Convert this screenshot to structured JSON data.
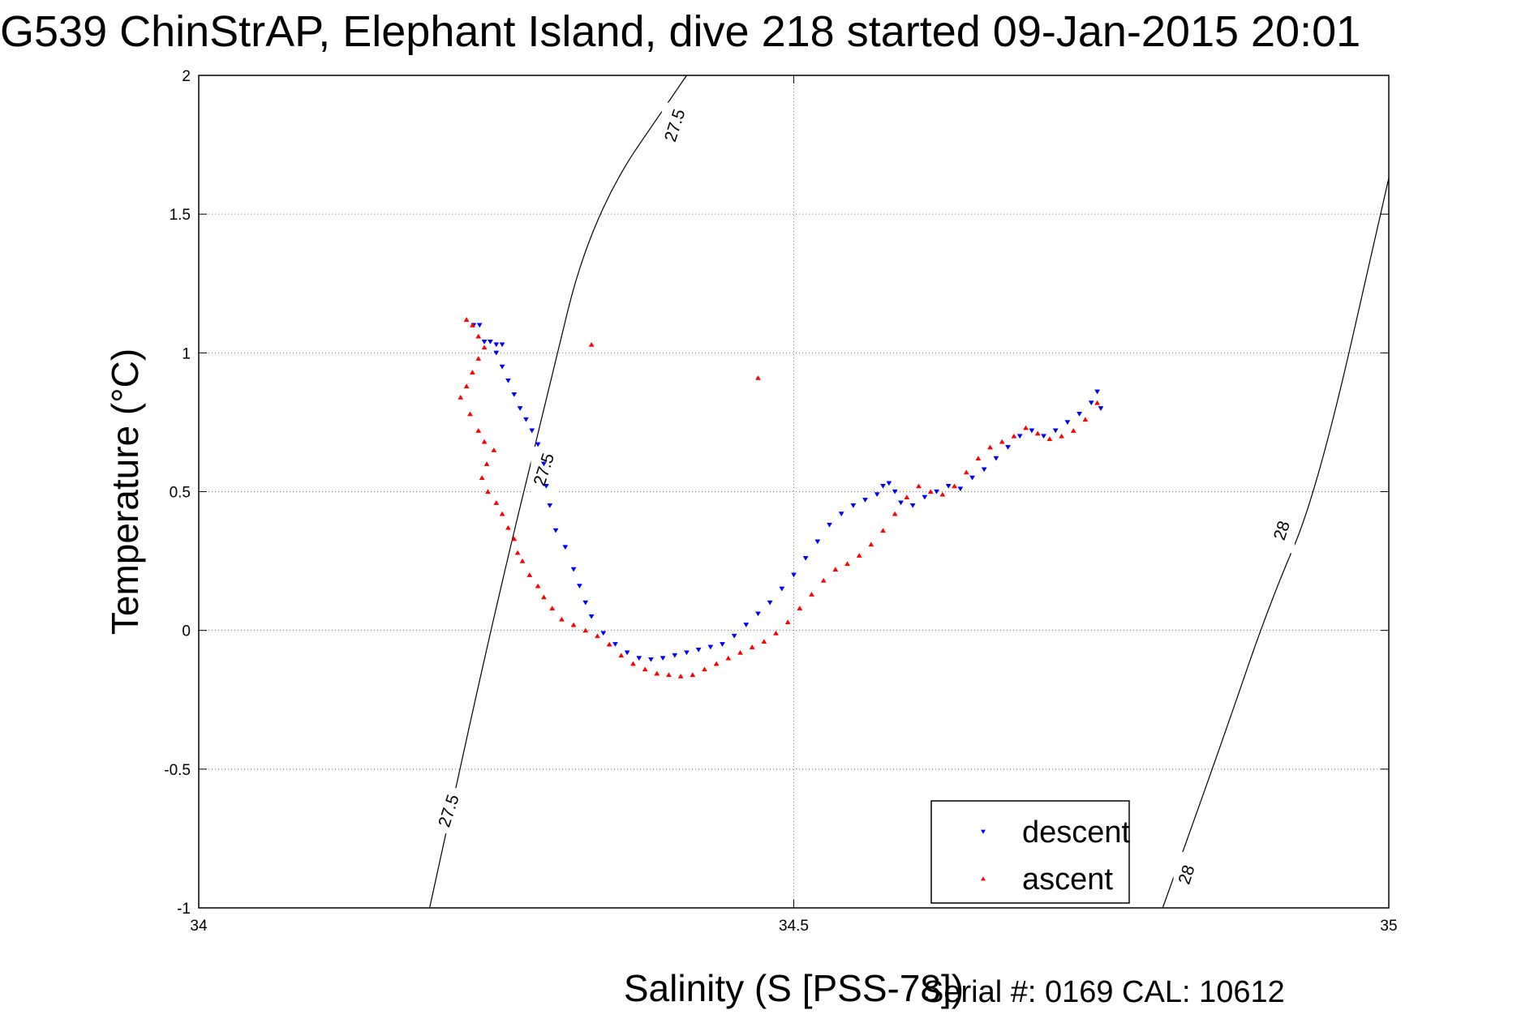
{
  "title": "G539 ChinStrAP, Elephant Island, dive 218 started 09-Jan-2015 20:01",
  "serial_text": "Serial #: 0169 CAL: 10612",
  "chart_data": {
    "type": "scatter",
    "title": "G539 ChinStrAP, Elephant Island, dive 218 started 09-Jan-2015 20:01",
    "xlabel": "Salinity (S [PSS-78])",
    "ylabel": "Temperature (°C)",
    "xlim": [
      34,
      35
    ],
    "ylim": [
      -1,
      2
    ],
    "xticks": [
      34,
      34.5,
      35
    ],
    "xtick_labels": [
      "34",
      "34.5",
      "35"
    ],
    "yticks": [
      -1,
      -0.5,
      0,
      0.5,
      1,
      1.5,
      2
    ],
    "ytick_labels": [
      "-1",
      "-0.5",
      "0",
      "0.5",
      "1",
      "1.5",
      "2"
    ],
    "grid": true,
    "legend_position": "bottom-right",
    "contours": [
      {
        "label": "27.5",
        "points": [
          [
            34.194,
            -1.0
          ],
          [
            34.245,
            0.0
          ],
          [
            34.29,
            0.8
          ],
          [
            34.33,
            1.5
          ],
          [
            34.41,
            2.0
          ]
        ],
        "label_at": [
          [
            34.21,
            -0.65
          ],
          [
            34.29,
            0.58
          ],
          [
            34.4,
            1.82
          ]
        ]
      },
      {
        "label": "28",
        "points": [
          [
            34.81,
            -1.0
          ],
          [
            34.86,
            -0.4
          ],
          [
            34.9,
            0.1
          ],
          [
            34.94,
            0.5
          ],
          [
            35.0,
            1.63
          ]
        ],
        "label_at": [
          [
            34.83,
            -0.88
          ],
          [
            34.91,
            0.36
          ]
        ]
      }
    ],
    "series": [
      {
        "name": "descent",
        "color": "#0000ff",
        "marker": "triangle-down",
        "points": [
          [
            34.231,
            1.1
          ],
          [
            34.236,
            1.1
          ],
          [
            34.24,
            1.04
          ],
          [
            34.245,
            1.04
          ],
          [
            34.25,
            1.03
          ],
          [
            34.255,
            1.03
          ],
          [
            34.25,
            1.0
          ],
          [
            34.255,
            0.95
          ],
          [
            34.26,
            0.9
          ],
          [
            34.265,
            0.85
          ],
          [
            34.27,
            0.8
          ],
          [
            34.275,
            0.76
          ],
          [
            34.28,
            0.72
          ],
          [
            34.285,
            0.67
          ],
          [
            34.29,
            0.6
          ],
          [
            34.292,
            0.52
          ],
          [
            34.295,
            0.45
          ],
          [
            34.3,
            0.36
          ],
          [
            34.308,
            0.3
          ],
          [
            34.315,
            0.22
          ],
          [
            34.32,
            0.16
          ],
          [
            34.325,
            0.1
          ],
          [
            34.33,
            0.05
          ],
          [
            34.34,
            -0.01
          ],
          [
            34.35,
            -0.05
          ],
          [
            34.36,
            -0.08
          ],
          [
            34.37,
            -0.1
          ],
          [
            34.38,
            -0.105
          ],
          [
            34.39,
            -0.1
          ],
          [
            34.4,
            -0.09
          ],
          [
            34.41,
            -0.08
          ],
          [
            34.42,
            -0.07
          ],
          [
            34.43,
            -0.06
          ],
          [
            34.44,
            -0.05
          ],
          [
            34.45,
            -0.02
          ],
          [
            34.46,
            0.02
          ],
          [
            34.47,
            0.06
          ],
          [
            34.48,
            0.1
          ],
          [
            34.49,
            0.15
          ],
          [
            34.5,
            0.2
          ],
          [
            34.51,
            0.26
          ],
          [
            34.52,
            0.32
          ],
          [
            34.53,
            0.38
          ],
          [
            34.54,
            0.42
          ],
          [
            34.55,
            0.45
          ],
          [
            34.56,
            0.47
          ],
          [
            34.57,
            0.49
          ],
          [
            34.575,
            0.52
          ],
          [
            34.58,
            0.53
          ],
          [
            34.585,
            0.5
          ],
          [
            34.59,
            0.46
          ],
          [
            34.6,
            0.45
          ],
          [
            34.61,
            0.48
          ],
          [
            34.62,
            0.5
          ],
          [
            34.63,
            0.52
          ],
          [
            34.64,
            0.51
          ],
          [
            34.65,
            0.55
          ],
          [
            34.66,
            0.58
          ],
          [
            34.67,
            0.62
          ],
          [
            34.68,
            0.66
          ],
          [
            34.69,
            0.7
          ],
          [
            34.7,
            0.72
          ],
          [
            34.71,
            0.7
          ],
          [
            34.72,
            0.72
          ],
          [
            34.73,
            0.75
          ],
          [
            34.74,
            0.78
          ],
          [
            34.75,
            0.82
          ],
          [
            34.755,
            0.86
          ],
          [
            34.758,
            0.8
          ]
        ]
      },
      {
        "name": "ascent",
        "color": "#ff0000",
        "marker": "triangle-up",
        "points": [
          [
            34.225,
            1.12
          ],
          [
            34.23,
            1.1
          ],
          [
            34.235,
            1.06
          ],
          [
            34.24,
            1.02
          ],
          [
            34.235,
            0.98
          ],
          [
            34.23,
            0.93
          ],
          [
            34.225,
            0.88
          ],
          [
            34.22,
            0.84
          ],
          [
            34.228,
            0.78
          ],
          [
            34.235,
            0.72
          ],
          [
            34.24,
            0.68
          ],
          [
            34.248,
            0.65
          ],
          [
            34.242,
            0.6
          ],
          [
            34.238,
            0.55
          ],
          [
            34.243,
            0.5
          ],
          [
            34.25,
            0.46
          ],
          [
            34.255,
            0.42
          ],
          [
            34.26,
            0.37
          ],
          [
            34.265,
            0.33
          ],
          [
            34.268,
            0.28
          ],
          [
            34.272,
            0.25
          ],
          [
            34.278,
            0.2
          ],
          [
            34.285,
            0.16
          ],
          [
            34.29,
            0.12
          ],
          [
            34.297,
            0.08
          ],
          [
            34.305,
            0.04
          ],
          [
            34.315,
            0.02
          ],
          [
            34.325,
            0.0
          ],
          [
            34.335,
            -0.02
          ],
          [
            34.345,
            -0.05
          ],
          [
            34.355,
            -0.09
          ],
          [
            34.365,
            -0.12
          ],
          [
            34.375,
            -0.14
          ],
          [
            34.385,
            -0.155
          ],
          [
            34.395,
            -0.16
          ],
          [
            34.405,
            -0.165
          ],
          [
            34.415,
            -0.16
          ],
          [
            34.425,
            -0.14
          ],
          [
            34.435,
            -0.12
          ],
          [
            34.445,
            -0.1
          ],
          [
            34.455,
            -0.08
          ],
          [
            34.465,
            -0.06
          ],
          [
            34.475,
            -0.04
          ],
          [
            34.485,
            -0.01
          ],
          [
            34.495,
            0.03
          ],
          [
            34.505,
            0.08
          ],
          [
            34.515,
            0.13
          ],
          [
            34.525,
            0.18
          ],
          [
            34.535,
            0.22
          ],
          [
            34.545,
            0.24
          ],
          [
            34.555,
            0.27
          ],
          [
            34.565,
            0.31
          ],
          [
            34.575,
            0.36
          ],
          [
            34.585,
            0.42
          ],
          [
            34.595,
            0.48
          ],
          [
            34.605,
            0.52
          ],
          [
            34.615,
            0.5
          ],
          [
            34.625,
            0.49
          ],
          [
            34.635,
            0.52
          ],
          [
            34.645,
            0.57
          ],
          [
            34.655,
            0.62
          ],
          [
            34.665,
            0.66
          ],
          [
            34.675,
            0.68
          ],
          [
            34.685,
            0.7
          ],
          [
            34.695,
            0.73
          ],
          [
            34.705,
            0.71
          ],
          [
            34.715,
            0.69
          ],
          [
            34.725,
            0.7
          ],
          [
            34.735,
            0.72
          ],
          [
            34.745,
            0.76
          ],
          [
            34.755,
            0.82
          ],
          [
            34.33,
            1.03
          ],
          [
            34.47,
            0.91
          ]
        ]
      }
    ]
  }
}
